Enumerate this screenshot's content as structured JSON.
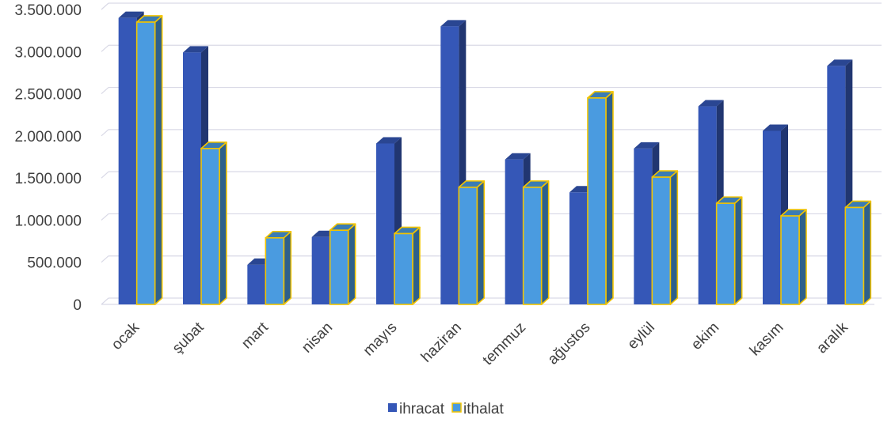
{
  "chart_data": {
    "type": "bar",
    "categories": [
      "ocak",
      "şubat",
      "mart",
      "nisan",
      "mayıs",
      "haziran",
      "temmuz",
      "ağustos",
      "eylül",
      "ekim",
      "kasım",
      "aralık"
    ],
    "series": [
      {
        "name": "ihracat",
        "color": "#3557b7",
        "values": [
          3400000,
          2990000,
          470000,
          800000,
          1910000,
          3300000,
          1720000,
          1330000,
          1850000,
          2350000,
          2060000,
          2830000
        ]
      },
      {
        "name": "ithalat",
        "color": "#4a9be0",
        "border_color": "#f2c400",
        "values": [
          3350000,
          1850000,
          790000,
          880000,
          840000,
          1390000,
          1390000,
          2450000,
          1510000,
          1200000,
          1050000,
          1150000
        ]
      }
    ],
    "ylim": [
      0,
      3500000
    ],
    "yticks": [
      "0",
      "500.000",
      "1.000.000",
      "1.500.000",
      "2.000.000",
      "2.500.000",
      "3.000.000",
      "3.500.000"
    ],
    "grid": true,
    "legend_position": "bottom",
    "style": "3d-column"
  }
}
